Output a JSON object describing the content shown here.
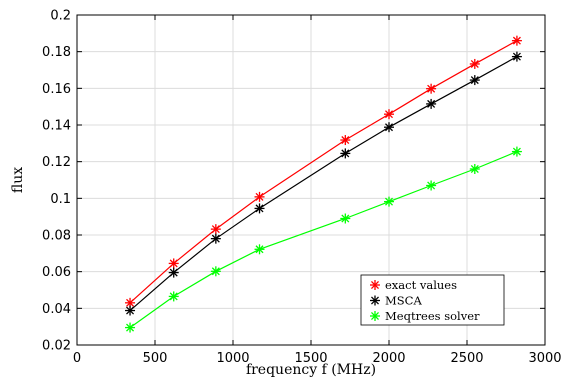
{
  "chart_data": {
    "type": "line",
    "title": "",
    "xlabel": "frequency f (MHz)",
    "ylabel": "flux",
    "xlim": [
      0,
      3000
    ],
    "ylim": [
      0.02,
      0.2
    ],
    "xticks": [
      0,
      500,
      1000,
      1500,
      2000,
      2500,
      3000
    ],
    "yticks": [
      0.02,
      0.04,
      0.06,
      0.08,
      0.1,
      0.12,
      0.14,
      0.16,
      0.18,
      0.2
    ],
    "xtick_labels": [
      "0",
      "500",
      "1000",
      "1500",
      "2000",
      "2500",
      "3000"
    ],
    "ytick_labels": [
      "0.02",
      "0.04",
      "0.06",
      "0.08",
      "0.1",
      "0.12",
      "0.14",
      "0.16",
      "0.18",
      "0.2"
    ],
    "grid": true,
    "legend_position": "bottom-right",
    "x": [
      340,
      620,
      890,
      1170,
      1720,
      2000,
      2270,
      2550,
      2820
    ],
    "series": [
      {
        "name": "exact values",
        "color": "#ff0000",
        "values": [
          0.043,
          0.0645,
          0.0832,
          0.1008,
          0.1318,
          0.1459,
          0.1598,
          0.1733,
          0.186
        ]
      },
      {
        "name": "MSCA",
        "color": "#000000",
        "values": [
          0.0388,
          0.0595,
          0.078,
          0.0945,
          0.1245,
          0.1388,
          0.1515,
          0.1645,
          0.1773
        ]
      },
      {
        "name": "Meqtrees solver",
        "color": "#00ff00",
        "values": [
          0.0295,
          0.0465,
          0.0602,
          0.0722,
          0.089,
          0.0982,
          0.107,
          0.116,
          0.1255
        ]
      }
    ]
  }
}
